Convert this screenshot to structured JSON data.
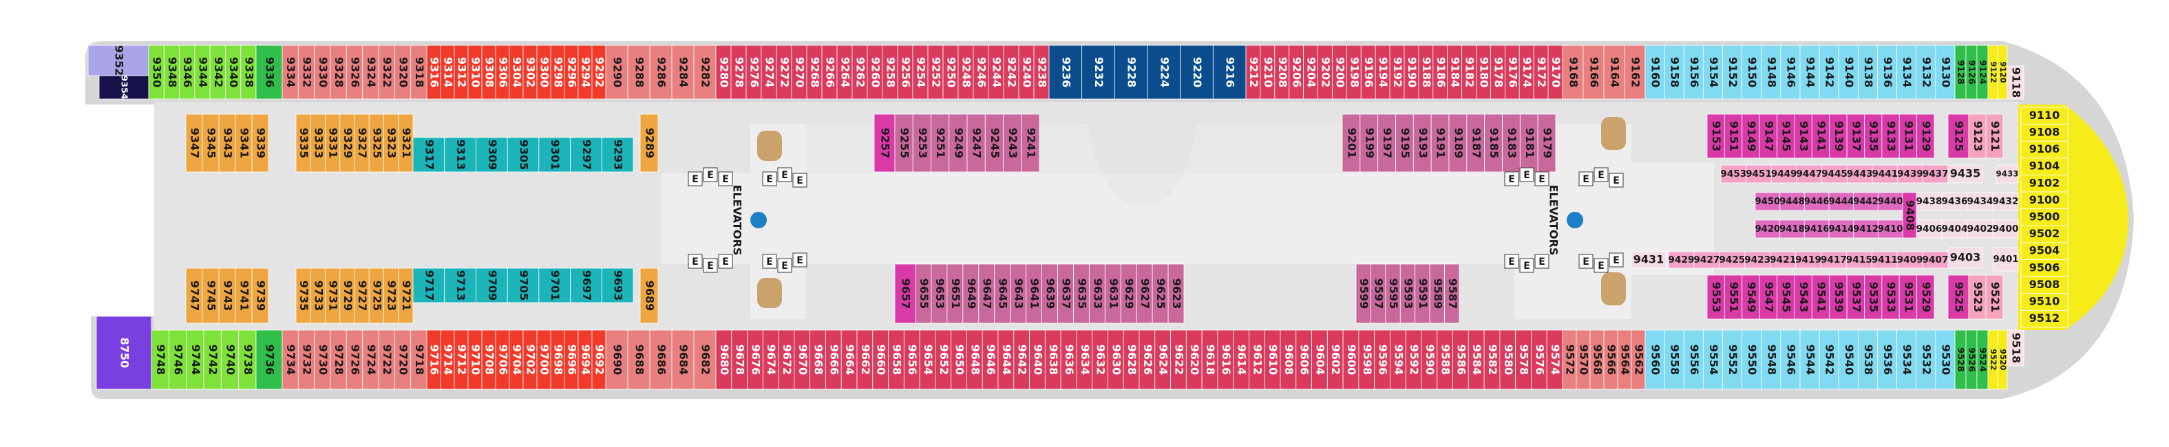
{
  "deck": {
    "elevators": {
      "label": "ELEVATORS",
      "button": "E"
    },
    "blocks": [
      {
        "color": "#a9a5e8",
        "cabins": [
          "9352"
        ]
      },
      {
        "color": "#17124a",
        "cabins": [
          "9354"
        ]
      },
      {
        "color": "#7fe23a",
        "cabins": [
          "9350",
          "9348",
          "9346",
          "9344",
          "9342",
          "9340",
          "9338"
        ]
      },
      {
        "color": "#2fbf4a",
        "cabins": [
          "9336"
        ]
      },
      {
        "color": "#ea7f7f",
        "cabins": [
          "9334",
          "9332",
          "9330",
          "9328",
          "9326",
          "9324",
          "9322",
          "9320",
          "9318"
        ]
      },
      {
        "color": "#f23a2a",
        "cabins": [
          "9316",
          "9314",
          "9312",
          "9310",
          "9308",
          "9306",
          "9304",
          "9302",
          "9300",
          "9298",
          "9296",
          "9294",
          "9292"
        ]
      },
      {
        "color": "#ea7f7f",
        "cabins": [
          "9290",
          "9288",
          "9286",
          "9284",
          "9282"
        ]
      },
      {
        "color": "#da3a5c",
        "cabins": [
          "9280",
          "9278",
          "9276",
          "9274",
          "9272",
          "9270",
          "9268",
          "9266",
          "9264",
          "9262",
          "9260",
          "9258",
          "9256",
          "9254",
          "9252",
          "9250",
          "9248",
          "9246",
          "9244",
          "9242",
          "9240",
          "9238"
        ]
      },
      {
        "color": "#0b4d8c",
        "cabins": [
          "9236",
          "9232",
          "9228",
          "9224",
          "9220",
          "9216"
        ]
      },
      {
        "color": "#da3a5c",
        "cabins": [
          "9212",
          "9210",
          "9208",
          "9206",
          "9204",
          "9202",
          "9200",
          "9198",
          "9196",
          "9194",
          "9192",
          "9190",
          "9188",
          "9186",
          "9184",
          "9182",
          "9180",
          "9178",
          "9176",
          "9174",
          "9172",
          "9170"
        ]
      },
      {
        "color": "#ea7f7f",
        "cabins": [
          "9168",
          "9166",
          "9164",
          "9162"
        ]
      },
      {
        "color": "#80daf2",
        "cabins": [
          "9160",
          "9158",
          "9156",
          "9154",
          "9152",
          "9150",
          "9148",
          "9146",
          "9144",
          "9142",
          "9140",
          "9138",
          "9136",
          "9134",
          "9132",
          "9130"
        ]
      },
      {
        "color": "#2fbf4a",
        "cabins": [
          "9128",
          "9126",
          "9124"
        ]
      },
      {
        "color": "#f5ec1a",
        "cabins": [
          "9122",
          "9120"
        ]
      },
      {
        "color": "#fbe0e5",
        "cabins": [
          "9118"
        ]
      },
      {
        "color": "#f5ec1a",
        "cabins": [
          "9110",
          "9108",
          "9106",
          "9104",
          "9102",
          "9100",
          "9500",
          "9502",
          "9504",
          "9506",
          "9508",
          "9510",
          "9512"
        ]
      },
      {
        "color": "#7a3fe0",
        "cabins": [
          "8750"
        ]
      },
      {
        "color": "#7fe23a",
        "cabins": [
          "9748",
          "9746",
          "9744",
          "9742",
          "9740",
          "9738"
        ]
      },
      {
        "color": "#2fbf4a",
        "cabins": [
          "9736"
        ]
      },
      {
        "color": "#ea7f7f",
        "cabins": [
          "9734",
          "9732",
          "9730",
          "9728",
          "9726",
          "9724",
          "9722",
          "9720",
          "9718"
        ]
      },
      {
        "color": "#f23a2a",
        "cabins": [
          "9716",
          "9714",
          "9712",
          "9710",
          "9708",
          "9706",
          "9704",
          "9702",
          "9700",
          "9698",
          "9696",
          "9694",
          "9692"
        ]
      },
      {
        "color": "#ea7f7f",
        "cabins": [
          "9690",
          "9688",
          "9686",
          "9684",
          "9682"
        ]
      },
      {
        "color": "#da3a5c",
        "cabins": [
          "9680",
          "9678",
          "9676",
          "9674",
          "9672",
          "9670",
          "9668",
          "9666",
          "9664",
          "9662",
          "9660",
          "9658",
          "9656",
          "9654",
          "9652",
          "9650",
          "9648",
          "9646",
          "9644",
          "9642",
          "9640",
          "9638",
          "9636",
          "9634",
          "9632",
          "9630",
          "9628",
          "9626",
          "9624",
          "9622",
          "9620",
          "9618",
          "9616",
          "9614",
          "9612",
          "9610",
          "9608",
          "9606",
          "9604",
          "9602",
          "9600",
          "9598",
          "9596",
          "9594",
          "9592",
          "9590",
          "9588",
          "9586",
          "9584",
          "9582",
          "9580",
          "9578",
          "9576",
          "9574"
        ]
      },
      {
        "color": "#ea7f7f",
        "cabins": [
          "9572",
          "9570",
          "9568",
          "9566",
          "9564",
          "9562"
        ]
      },
      {
        "color": "#80daf2",
        "cabins": [
          "9560",
          "9558",
          "9556",
          "9554",
          "9552",
          "9550",
          "9548",
          "9546",
          "9544",
          "9542",
          "9540",
          "9538",
          "9536",
          "9534",
          "9532",
          "9530"
        ]
      },
      {
        "color": "#2fbf4a",
        "cabins": [
          "9528",
          "9526",
          "9524"
        ]
      },
      {
        "color": "#f5ec1a",
        "cabins": [
          "9522",
          "9520"
        ]
      },
      {
        "color": "#fbe0e5",
        "cabins": [
          "9518"
        ]
      },
      {
        "color": "#f0a640",
        "cabins": [
          "9347",
          "9345",
          "9343",
          "9341",
          "9339"
        ]
      },
      {
        "color": "#f0a640",
        "cabins": [
          "9335",
          "9333",
          "9331",
          "9329",
          "9327",
          "9325",
          "9323",
          "9321"
        ]
      },
      {
        "color": "#1ab4b9",
        "cabins": [
          "9317",
          "9313",
          "9309",
          "9305",
          "9301",
          "9297",
          "9293"
        ]
      },
      {
        "color": "#f0a640",
        "cabins": [
          "9289"
        ]
      },
      {
        "color": "#d93aa8",
        "cabins": [
          "9257"
        ]
      },
      {
        "color": "#c9689b",
        "cabins": [
          "9255",
          "9253",
          "9251",
          "9249",
          "9247",
          "9245",
          "9243",
          "9241"
        ]
      },
      {
        "color": "#c9689b",
        "cabins": [
          "9201",
          "9199",
          "9197",
          "9195",
          "9193",
          "9191",
          "9189",
          "9187",
          "9185",
          "9183",
          "9181",
          "9179"
        ]
      },
      {
        "color": "#d93aa8",
        "cabins": [
          "9153",
          "9151",
          "9149",
          "9147",
          "9145",
          "9143",
          "9141",
          "9139",
          "9137",
          "9135",
          "9133",
          "9131",
          "9129"
        ]
      },
      {
        "color": "#d93aa8",
        "cabins": [
          "9125"
        ]
      },
      {
        "color": "#f4a3bb",
        "cabins": [
          "9123",
          "9121"
        ]
      },
      {
        "color": "#f4a3c6",
        "cabins": [
          "9453",
          "9451",
          "9449",
          "9447",
          "9445",
          "9443",
          "9441",
          "9439",
          "9437"
        ]
      },
      {
        "color": "#f4dde3",
        "cabins": [
          "9435"
        ]
      },
      {
        "color": "#f4dde3",
        "cabins": [
          "9433"
        ]
      },
      {
        "color": "#e06ac0",
        "cabins": [
          "9450",
          "9448",
          "9446",
          "9444",
          "9442",
          "9440"
        ]
      },
      {
        "color": "#d93aa8",
        "cabins": [
          "9408"
        ]
      },
      {
        "color": "#f4dde3",
        "cabins": [
          "9438",
          "9436",
          "9434",
          "9432"
        ]
      },
      {
        "color": "#e06ac0",
        "cabins": [
          "9420",
          "9418",
          "9416",
          "9414",
          "9412",
          "9410"
        ]
      },
      {
        "color": "#f4dde3",
        "cabins": [
          "9406",
          "9404",
          "9402",
          "9400"
        ]
      },
      {
        "color": "#f4dde3",
        "cabins": [
          "9431"
        ]
      },
      {
        "color": "#f4a3c6",
        "cabins": [
          "9429",
          "9427",
          "9425",
          "9423",
          "9421",
          "9419",
          "9417",
          "9415",
          "9411",
          "9409",
          "9407"
        ]
      },
      {
        "color": "#f4dde3",
        "cabins": [
          "9403"
        ]
      },
      {
        "color": "#f4dde3",
        "cabins": [
          "9401"
        ]
      },
      {
        "color": "#f0a640",
        "cabins": [
          "9747",
          "9745",
          "9743",
          "9741",
          "9739"
        ]
      },
      {
        "color": "#f0a640",
        "cabins": [
          "9735",
          "9733",
          "9731",
          "9729",
          "9727",
          "9725",
          "9723",
          "9721"
        ]
      },
      {
        "color": "#1ab4b9",
        "cabins": [
          "9717",
          "9713",
          "9709",
          "9705",
          "9701",
          "9697",
          "9693"
        ]
      },
      {
        "color": "#f0a640",
        "cabins": [
          "9689"
        ]
      },
      {
        "color": "#d93aa8",
        "cabins": [
          "9657"
        ]
      },
      {
        "color": "#c9689b",
        "cabins": [
          "9655",
          "9653",
          "9651",
          "9649",
          "9647",
          "9645",
          "9643",
          "9641",
          "9639",
          "9637",
          "9635",
          "9633",
          "9631",
          "9629",
          "9627",
          "9625",
          "9623"
        ]
      },
      {
        "color": "#c9689b",
        "cabins": [
          "9599",
          "9597",
          "9595",
          "9593",
          "9591",
          "9589",
          "9587"
        ]
      },
      {
        "color": "#d93aa8",
        "cabins": [
          "9553",
          "9551",
          "9549",
          "9547",
          "9545",
          "9543",
          "9541",
          "9539",
          "9537",
          "9535",
          "9533",
          "9531",
          "9529"
        ]
      },
      {
        "color": "#d93aa8",
        "cabins": [
          "9525"
        ]
      },
      {
        "color": "#f4a3bb",
        "cabins": [
          "9523",
          "9521"
        ]
      }
    ]
  }
}
